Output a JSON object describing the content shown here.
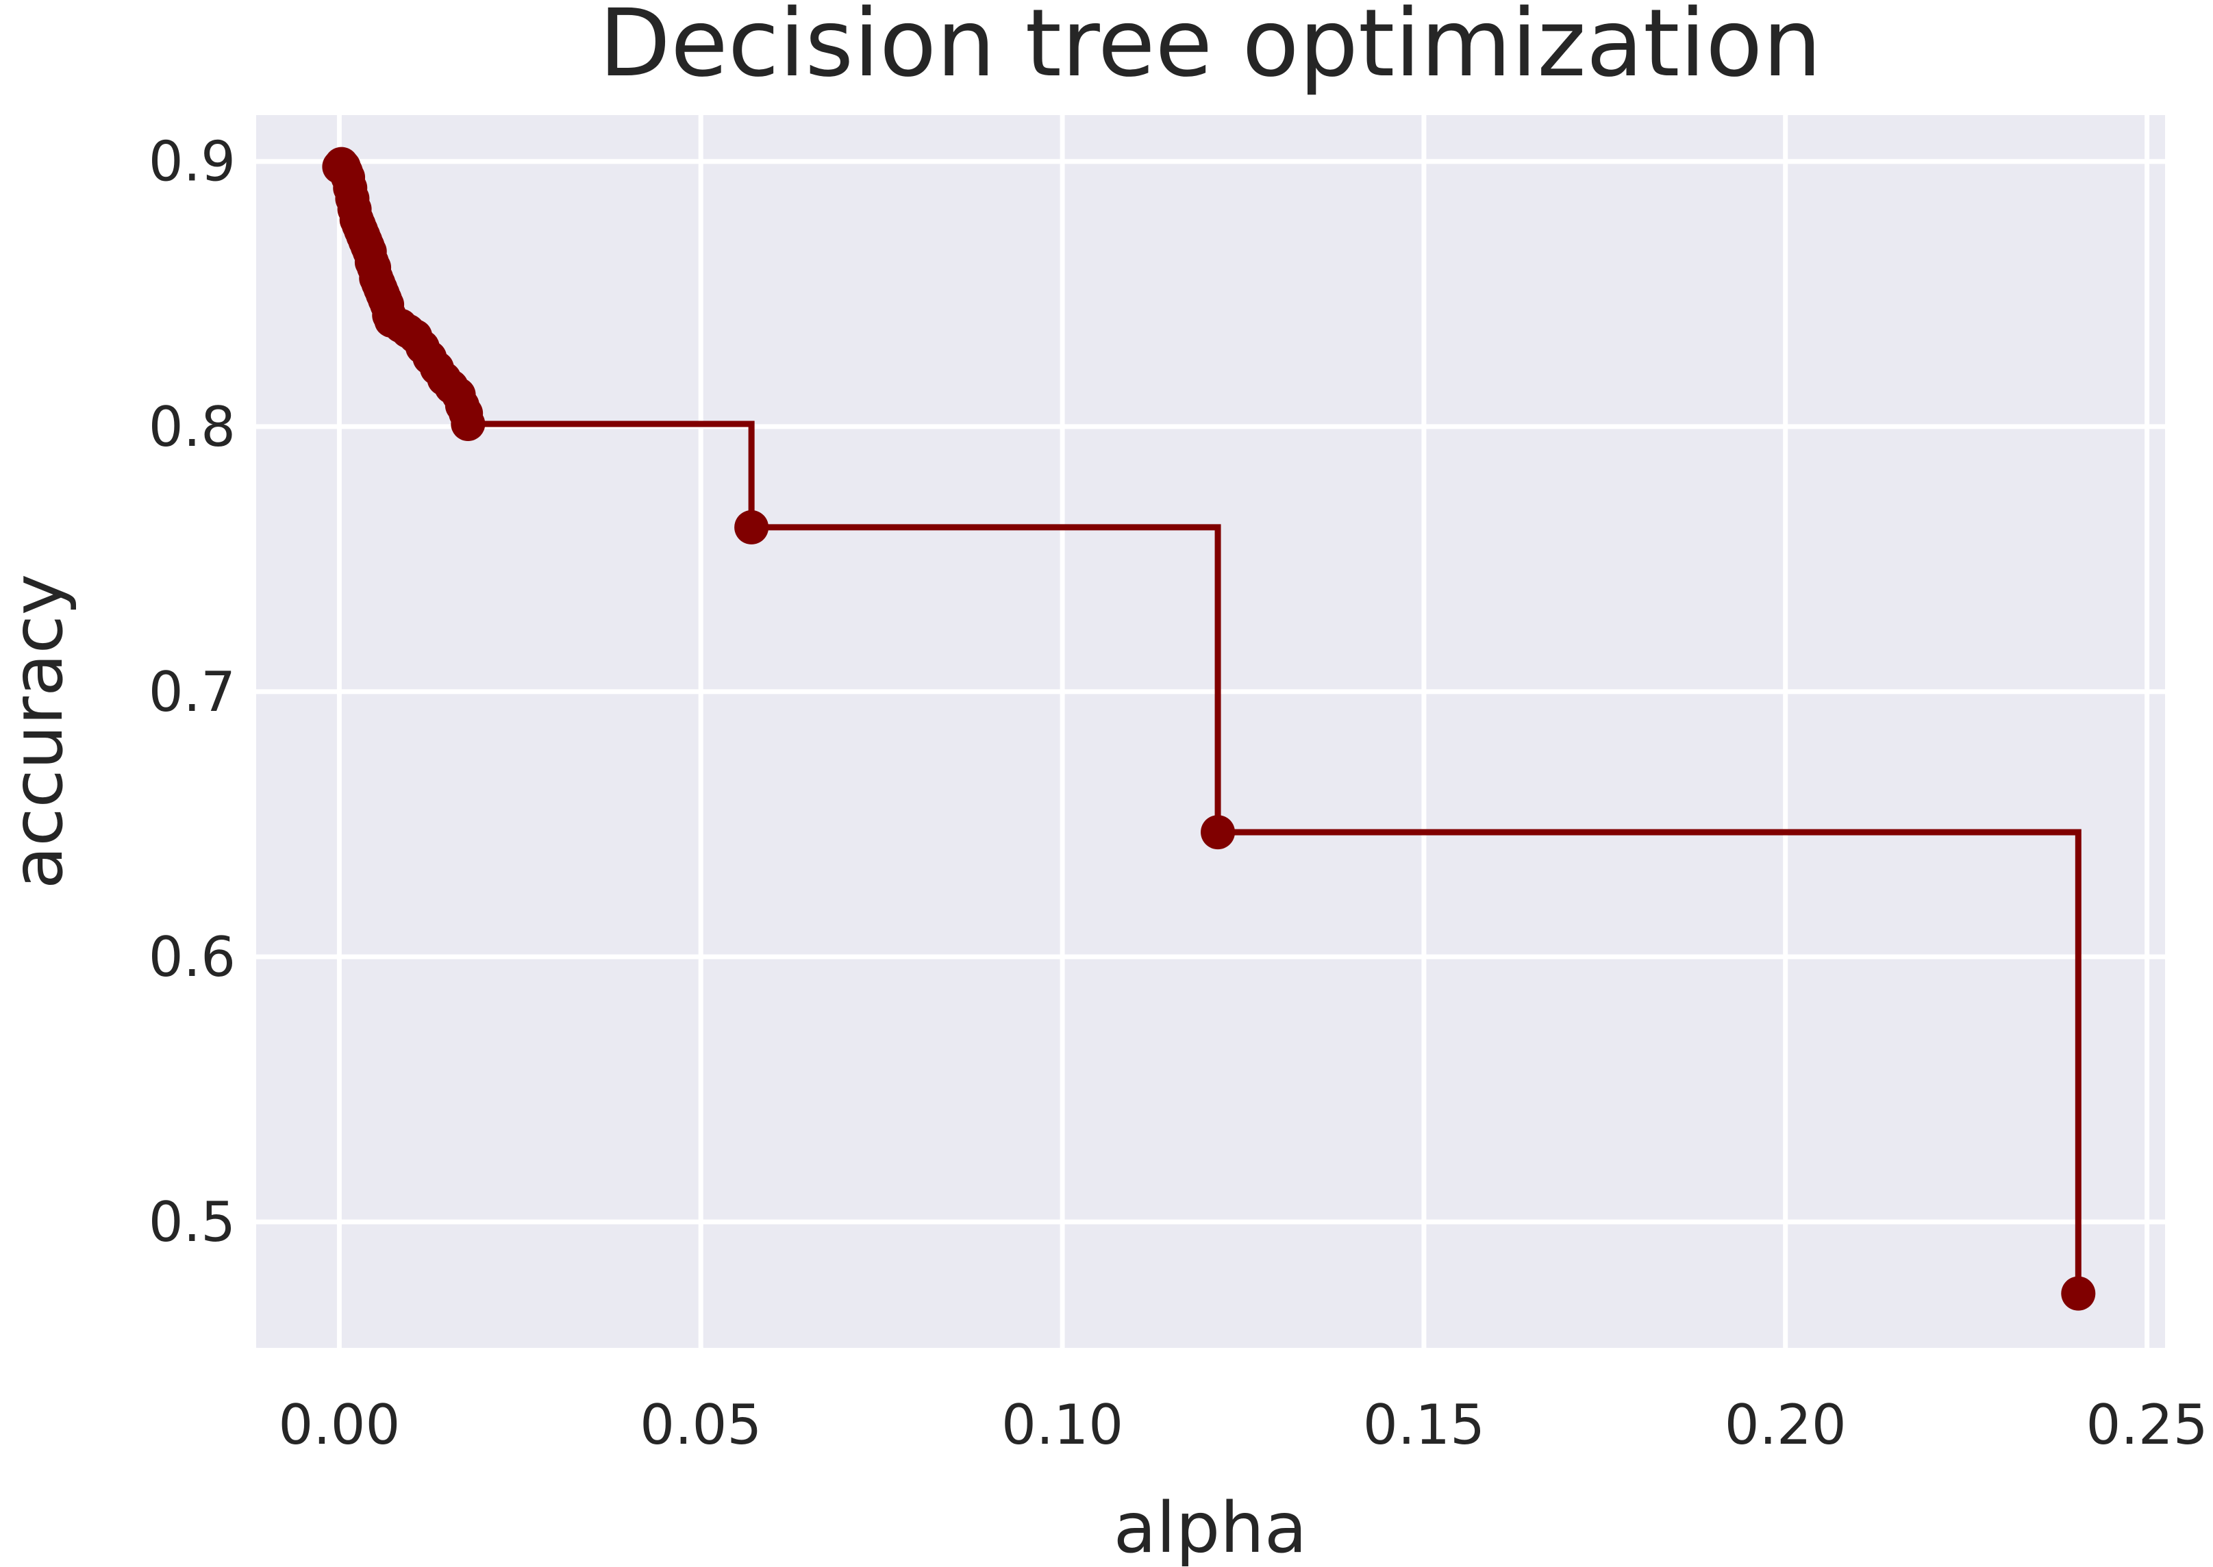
{
  "chart_data": {
    "type": "line",
    "drawstyle": "steps-post",
    "marker": "circle",
    "title": "Decision tree optimization",
    "xlabel": "alpha",
    "ylabel": "accuracy",
    "xlim": [
      -0.0115,
      0.2525
    ],
    "ylim": [
      0.4525,
      0.9175
    ],
    "xticks": [
      0.0,
      0.05,
      0.1,
      0.15,
      0.2,
      0.25
    ],
    "xtick_labels": [
      "0.00",
      "0.05",
      "0.10",
      "0.15",
      "0.20",
      "0.25"
    ],
    "yticks": [
      0.5,
      0.6,
      0.7,
      0.8,
      0.9
    ],
    "ytick_labels": [
      "0.5",
      "0.6",
      "0.7",
      "0.8",
      "0.9"
    ],
    "grid": true,
    "colors": {
      "series": "#800000",
      "plot_background": "#eaeaf2",
      "grid": "#ffffff",
      "text": "#262626"
    },
    "series": [
      {
        "x": [
          0.0,
          0.0003,
          0.0006,
          0.0009,
          0.0012,
          0.0015,
          0.0018,
          0.0021,
          0.0024,
          0.0027,
          0.003,
          0.0033,
          0.0036,
          0.0039,
          0.0042,
          0.0045,
          0.0048,
          0.0051,
          0.0054,
          0.0057,
          0.006,
          0.0063,
          0.0066,
          0.0069,
          0.0072,
          0.0085,
          0.0095,
          0.0105,
          0.0115,
          0.0125,
          0.0135,
          0.0145,
          0.0155,
          0.0165,
          0.017,
          0.0175,
          0.0178,
          0.057,
          0.1215,
          0.2405
        ],
        "y": [
          0.898,
          0.899,
          0.898,
          0.896,
          0.894,
          0.89,
          0.886,
          0.882,
          0.878,
          0.876,
          0.874,
          0.872,
          0.87,
          0.868,
          0.866,
          0.862,
          0.86,
          0.856,
          0.854,
          0.852,
          0.85,
          0.848,
          0.846,
          0.842,
          0.84,
          0.838,
          0.836,
          0.834,
          0.83,
          0.826,
          0.822,
          0.818,
          0.815,
          0.812,
          0.808,
          0.805,
          0.801,
          0.762,
          0.647,
          0.473
        ]
      }
    ]
  }
}
